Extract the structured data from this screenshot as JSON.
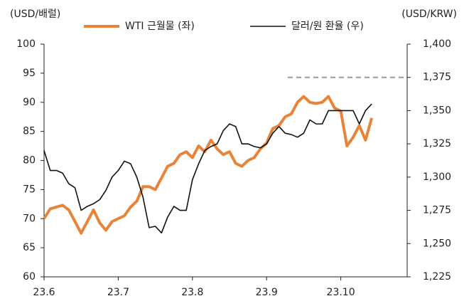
{
  "chart_data": {
    "type": "line",
    "y_label": "(USD/배럴)",
    "y2_label": "(USD/KRW)",
    "categories": [
      "23.6",
      null,
      null,
      null,
      null,
      null,
      null,
      null,
      null,
      null,
      null,
      null,
      "23.7",
      null,
      null,
      null,
      null,
      null,
      null,
      null,
      null,
      null,
      null,
      null,
      "23.8",
      null,
      null,
      null,
      null,
      null,
      null,
      null,
      null,
      null,
      null,
      null,
      "23.9",
      null,
      null,
      null,
      null,
      null,
      null,
      null,
      null,
      null,
      null,
      null,
      "23.10",
      null,
      null,
      null,
      null,
      null
    ],
    "series": [
      {
        "name": "WTI 근월물 (좌)",
        "color": "#e8843a",
        "axis": "y",
        "values": [
          70,
          71.7,
          72,
          72.3,
          71.5,
          69.5,
          67.5,
          69.5,
          71.5,
          69.3,
          68,
          69.5,
          70,
          70.5,
          72,
          73,
          75.5,
          75.5,
          75,
          77,
          79,
          79.5,
          81,
          81.5,
          80.5,
          82.5,
          81.5,
          83.5,
          82,
          81,
          81.5,
          79.5,
          79,
          80,
          80.5,
          82,
          83,
          85.5,
          86,
          87.5,
          88,
          90,
          91,
          90,
          89.8,
          90,
          91,
          89,
          88.5,
          82.5,
          84,
          86,
          83.5,
          87.3
        ]
      },
      {
        "name": "달러/원 환율 (우)",
        "color": "#111111",
        "axis": "y2",
        "values": [
          1320,
          1305,
          1305,
          1303,
          1295,
          1292,
          1275,
          1278,
          1280,
          1283,
          1290,
          1300,
          1305,
          1312,
          1310,
          1300,
          1285,
          1262,
          1263,
          1258,
          1270,
          1278,
          1275,
          1275,
          1298,
          1310,
          1320,
          1323,
          1325,
          1335,
          1340,
          1338,
          1325,
          1325,
          1323,
          1322,
          1325,
          1333,
          1338,
          1333,
          1332,
          1330,
          1333,
          1343,
          1340,
          1340,
          1350,
          1350,
          1350,
          1350,
          1350,
          1340,
          1350,
          1355
        ]
      }
    ],
    "ylim": [
      60,
      100
    ],
    "yticks": [
      60,
      65,
      70,
      75,
      80,
      85,
      90,
      95,
      100
    ],
    "y2lim": [
      1225,
      1400
    ],
    "y2ticks": [
      {
        "value": 1225,
        "label": "1,225"
      },
      {
        "value": 1250,
        "label": "1,250"
      },
      {
        "value": 1275,
        "label": "1,275"
      },
      {
        "value": 1300,
        "label": "1,300"
      },
      {
        "value": 1325,
        "label": "1,325"
      },
      {
        "value": 1350,
        "label": "1,350"
      },
      {
        "value": 1375,
        "label": "1,375"
      },
      {
        "value": 1400,
        "label": "1,400"
      }
    ],
    "reference_line": {
      "value": 1375,
      "axis": "y2",
      "color": "#999999"
    },
    "grid": false
  }
}
